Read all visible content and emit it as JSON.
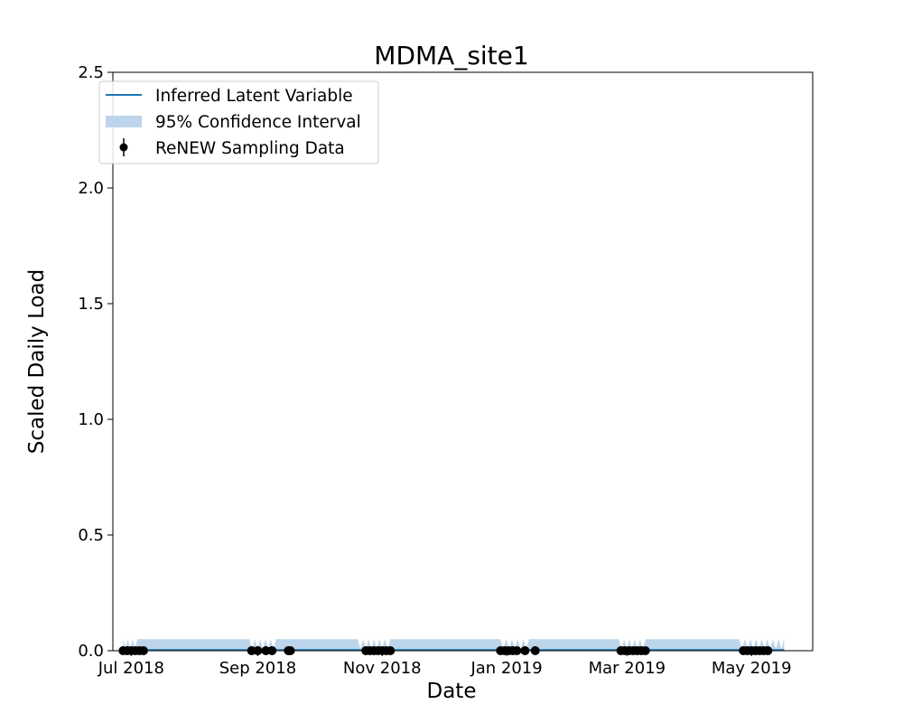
{
  "chart_data": {
    "type": "line",
    "title": "MDMA_site1",
    "xlabel": "Date",
    "ylabel": "Scaled Daily Load",
    "x_axis_type": "date",
    "xlim": [
      "2018-06-22",
      "2019-05-31"
    ],
    "ylim": [
      0,
      2.5
    ],
    "grid": false,
    "legend_position": "top-left",
    "x_ticks": [
      {
        "date": "2018-07-01",
        "label": "Jul 2018"
      },
      {
        "date": "2018-09-01",
        "label": "Sep 2018"
      },
      {
        "date": "2018-11-01",
        "label": "Nov 2018"
      },
      {
        "date": "2019-01-01",
        "label": "Jan 2019"
      },
      {
        "date": "2019-03-01",
        "label": "Mar 2019"
      },
      {
        "date": "2019-05-01",
        "label": "May 2019"
      }
    ],
    "y_ticks": [
      {
        "value": 0.0,
        "label": "0.0"
      },
      {
        "value": 0.5,
        "label": "0.5"
      },
      {
        "value": 1.0,
        "label": "1.0"
      },
      {
        "value": 1.5,
        "label": "1.5"
      },
      {
        "value": 2.0,
        "label": "2.0"
      },
      {
        "value": 2.5,
        "label": "2.5"
      }
    ],
    "legend": [
      {
        "label": "Inferred Latent Variable",
        "kind": "line",
        "color": "#1f77b4"
      },
      {
        "label": "95% Confidence Interval",
        "kind": "band",
        "color": "#bcd5ea"
      },
      {
        "label": "ReNEW Sampling Data",
        "kind": "errorbar",
        "color": "#000000"
      }
    ],
    "series": [
      {
        "name": "Inferred Latent Variable",
        "kind": "line",
        "color": "#1f77b4",
        "x": [
          "2018-06-27",
          "2019-05-17"
        ],
        "y": [
          0.003,
          0.003
        ]
      },
      {
        "name": "95% Confidence Interval",
        "kind": "band",
        "color": "#bcd5ea",
        "segments": [
          {
            "start": "2018-06-27",
            "end": "2018-07-04",
            "lower": 0.0,
            "upper": 0.05,
            "dips": true
          },
          {
            "start": "2018-07-04",
            "end": "2018-08-28",
            "lower": 0.0,
            "upper": 0.05,
            "dips": false
          },
          {
            "start": "2018-08-28",
            "end": "2018-09-10",
            "lower": 0.0,
            "upper": 0.05,
            "dips": true
          },
          {
            "start": "2018-09-10",
            "end": "2018-10-20",
            "lower": 0.0,
            "upper": 0.05,
            "dips": false
          },
          {
            "start": "2018-10-20",
            "end": "2018-11-05",
            "lower": 0.0,
            "upper": 0.05,
            "dips": true
          },
          {
            "start": "2018-11-05",
            "end": "2018-12-29",
            "lower": 0.0,
            "upper": 0.05,
            "dips": false
          },
          {
            "start": "2018-12-29",
            "end": "2019-01-12",
            "lower": 0.0,
            "upper": 0.05,
            "dips": true
          },
          {
            "start": "2019-01-12",
            "end": "2019-02-25",
            "lower": 0.0,
            "upper": 0.05,
            "dips": false
          },
          {
            "start": "2019-02-25",
            "end": "2019-03-10",
            "lower": 0.0,
            "upper": 0.05,
            "dips": true
          },
          {
            "start": "2019-03-10",
            "end": "2019-04-25",
            "lower": 0.0,
            "upper": 0.05,
            "dips": false
          },
          {
            "start": "2019-04-25",
            "end": "2019-05-17",
            "lower": 0.0,
            "upper": 0.05,
            "dips": true
          }
        ]
      },
      {
        "name": "ReNEW Sampling Data",
        "kind": "errorbar",
        "color": "#000000",
        "x": [
          "2018-06-27",
          "2018-06-29",
          "2018-07-01",
          "2018-07-03",
          "2018-07-05",
          "2018-07-07",
          "2018-08-29",
          "2018-09-01",
          "2018-09-05",
          "2018-09-08",
          "2018-09-16",
          "2018-09-17",
          "2018-10-24",
          "2018-10-26",
          "2018-10-28",
          "2018-10-30",
          "2018-11-01",
          "2018-11-03",
          "2018-11-05",
          "2018-12-29",
          "2018-12-31",
          "2019-01-02",
          "2019-01-04",
          "2019-01-06",
          "2019-01-10",
          "2019-01-15",
          "2019-02-26",
          "2019-02-28",
          "2019-03-02",
          "2019-03-04",
          "2019-03-06",
          "2019-03-08",
          "2019-03-10",
          "2019-04-27",
          "2019-04-29",
          "2019-05-01",
          "2019-05-03",
          "2019-05-05",
          "2019-05-07",
          "2019-05-09"
        ],
        "y": [
          0,
          0,
          0,
          0,
          0,
          0,
          0,
          0,
          0,
          0,
          0,
          0,
          0,
          0,
          0,
          0,
          0,
          0,
          0,
          0,
          0,
          0,
          0,
          0,
          0,
          0,
          0,
          0,
          0,
          0,
          0,
          0,
          0,
          0,
          0,
          0,
          0,
          0,
          0,
          0
        ]
      }
    ]
  }
}
